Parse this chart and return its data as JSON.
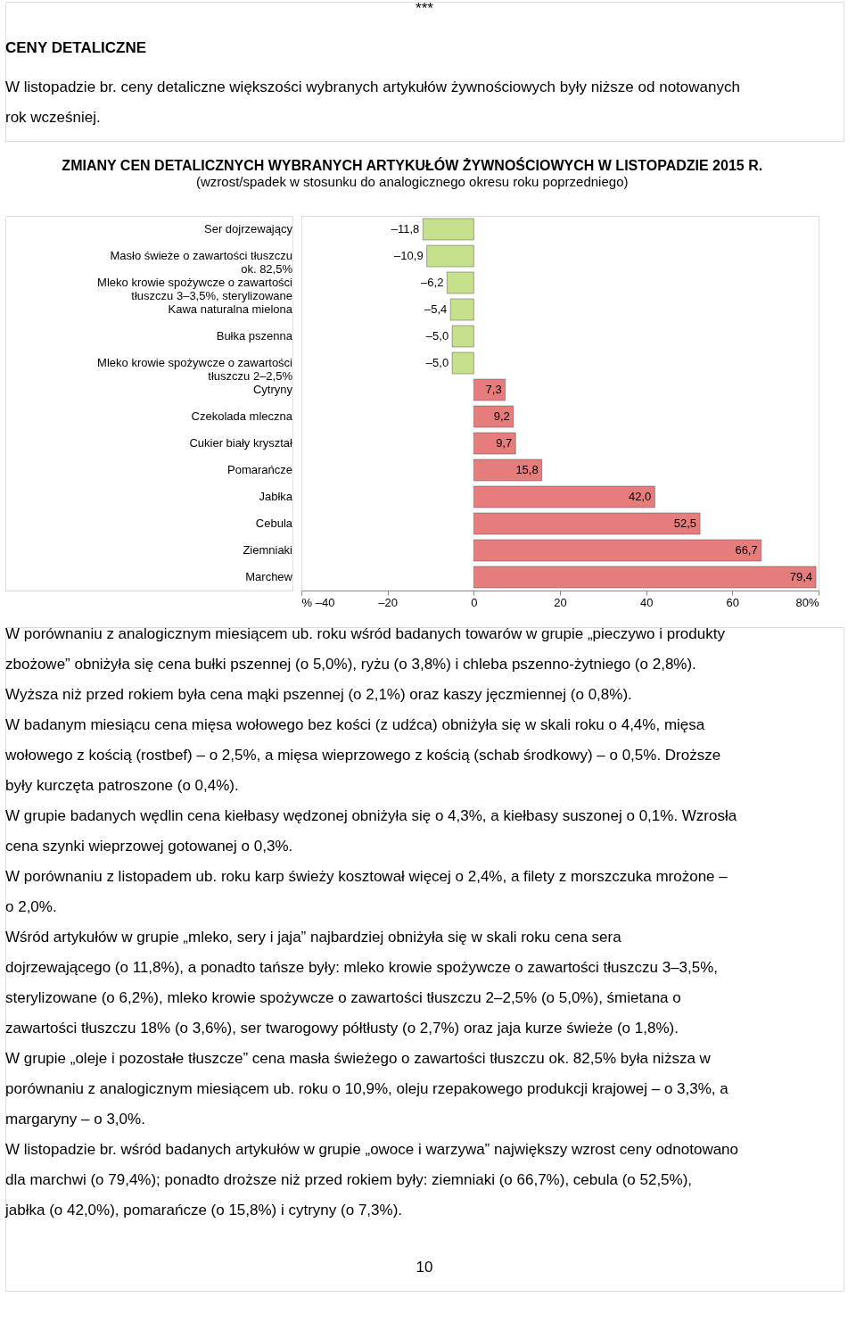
{
  "chart_data": {
    "type": "bar",
    "orientation": "horizontal",
    "title": "ZMIANY CEN DETALICZNYCH WYBRANYCH ARTYKUŁÓW ŻYWNOŚCIOWYCH W LISTOPADZIE 2015 R.",
    "subtitle": "(wzrost/spadek w stosunku do analogicznego okresu roku poprzedniego)",
    "categories": [
      "Ser dojrzewający",
      "Masło świeże o zawartości tłuszczu ok. 82,5%",
      "Mleko krowie spożywcze o zawartości tłuszczu 3–3,5%, sterylizowane",
      "Kawa naturalna mielona",
      "Bułka pszenna",
      "Mleko krowie spożywcze o zawartości tłuszczu 2–2,5%",
      "Cytryny",
      "Czekolada mleczna",
      "Cukier biały kryształ",
      "Pomarańcze",
      "Jabłka",
      "Cebula",
      "Ziemniaki",
      "Marchew"
    ],
    "values": [
      -11.8,
      -10.9,
      -6.2,
      -5.4,
      -5.0,
      -5.0,
      7.3,
      9.2,
      9.7,
      15.8,
      42.0,
      52.5,
      66.7,
      79.4
    ],
    "colors": [
      "#c6e08c",
      "#c6e08c",
      "#c6e08c",
      "#c6e08c",
      "#c6e08c",
      "#c6e08c",
      "#e67c7c",
      "#e67c7c",
      "#e67c7c",
      "#e67c7c",
      "#e67c7c",
      "#e67c7c",
      "#e67c7c",
      "#e67c7c"
    ],
    "value_labels": [
      "–11,8",
      "–10,9",
      "–6,2",
      "–5,4",
      "–5,0",
      "–5,0",
      "7,3",
      "9,2",
      "9,7",
      "15,8",
      "42,0",
      "52,5",
      "66,7",
      "79,4"
    ],
    "xlim": [
      -40,
      80
    ],
    "xticks": [
      {
        "value": -40,
        "label": "% –40"
      },
      {
        "value": -20,
        "label": "–20"
      },
      0,
      20,
      40,
      60,
      {
        "value": 80,
        "label": "80%"
      }
    ],
    "grid": false,
    "legend": false,
    "annotations": [
      "***",
      "CENY DETALICZNE",
      "W listopadzie br. ceny detaliczne większości wybranych artykułów żywnościowych były niższe od notowanych rok wcześniej.",
      "W porównaniu z analogicznym miesiącem ub. roku wśród badanych towarów w grupie „pieczywo i produkty zbożowe” obniżyła się cena bułki pszennej (o 5,0%), ryżu (o 3,8%) i chleba pszenno-żytniego (o 2,8%). Wyższa niż przed rokiem była cena mąki pszennej (o 2,1%) oraz kaszy jęczmiennej (o 0,8%).",
      "W badanym miesiącu cena mięsa wołowego bez kości (z udźca) obniżyła się w skali roku o 4,4%, mięsa wołowego z kością (rostbef) – o 2,5%, a mięsa wieprzowego z kością (schab środkowy) – o 0,5%. Droższe były kurczęta patroszone (o 0,4%).",
      "W grupie badanych wędlin cena kiełbasy wędzonej obniżyła się o 4,3%, a kiełbasy suszonej o 0,1%. Wzrosła cena szynki wieprzowej gotowanej o 0,3%.",
      "W porównaniu z listopadem ub. roku karp świeży kosztował więcej o 2,4%, a filety z morszczuka mrożone – o 2,0%.",
      "Wśród artykułów w grupie „mleko, sery i jaja” najbardziej obniżyła się w skali roku cena sera dojrzewającego (o 11,8%), a ponadto tańsze były: mleko krowie spożywcze o zawartości tłuszczu 3–3,5%, sterylizowane (o 6,2%), mleko krowie spożywcze o zawartości tłuszczu 2–2,5% (o 5,0%), śmietana o zawartości tłuszczu 18% (o 3,6%), ser twarogowy półtłusty (o 2,7%) oraz jaja kurze świeże (o 1,8%).",
      "W grupie „oleje i pozostałe tłuszcze” cena masła świeżego o zawartości tłuszczu ok. 82,5% była niższa w porównaniu z analogicznym miesiącem ub. roku o 10,9%, oleju rzepakowego produkcji krajowej – o 3,3%, a margaryny – o 3,0%.",
      "W listopadzie br. wśród badanych artykułów w grupie „owoce i warzywa” największy wzrost ceny odnotowano dla marchwi (o 79,4%); ponadto droższe niż przed rokiem były: ziemniaki (o 66,7%), cebula (o 52,5%), jabłka (o 42,0%), pomarańcze (o 15,8%) i cytryny (o 7,3%).",
      "10"
    ]
  }
}
